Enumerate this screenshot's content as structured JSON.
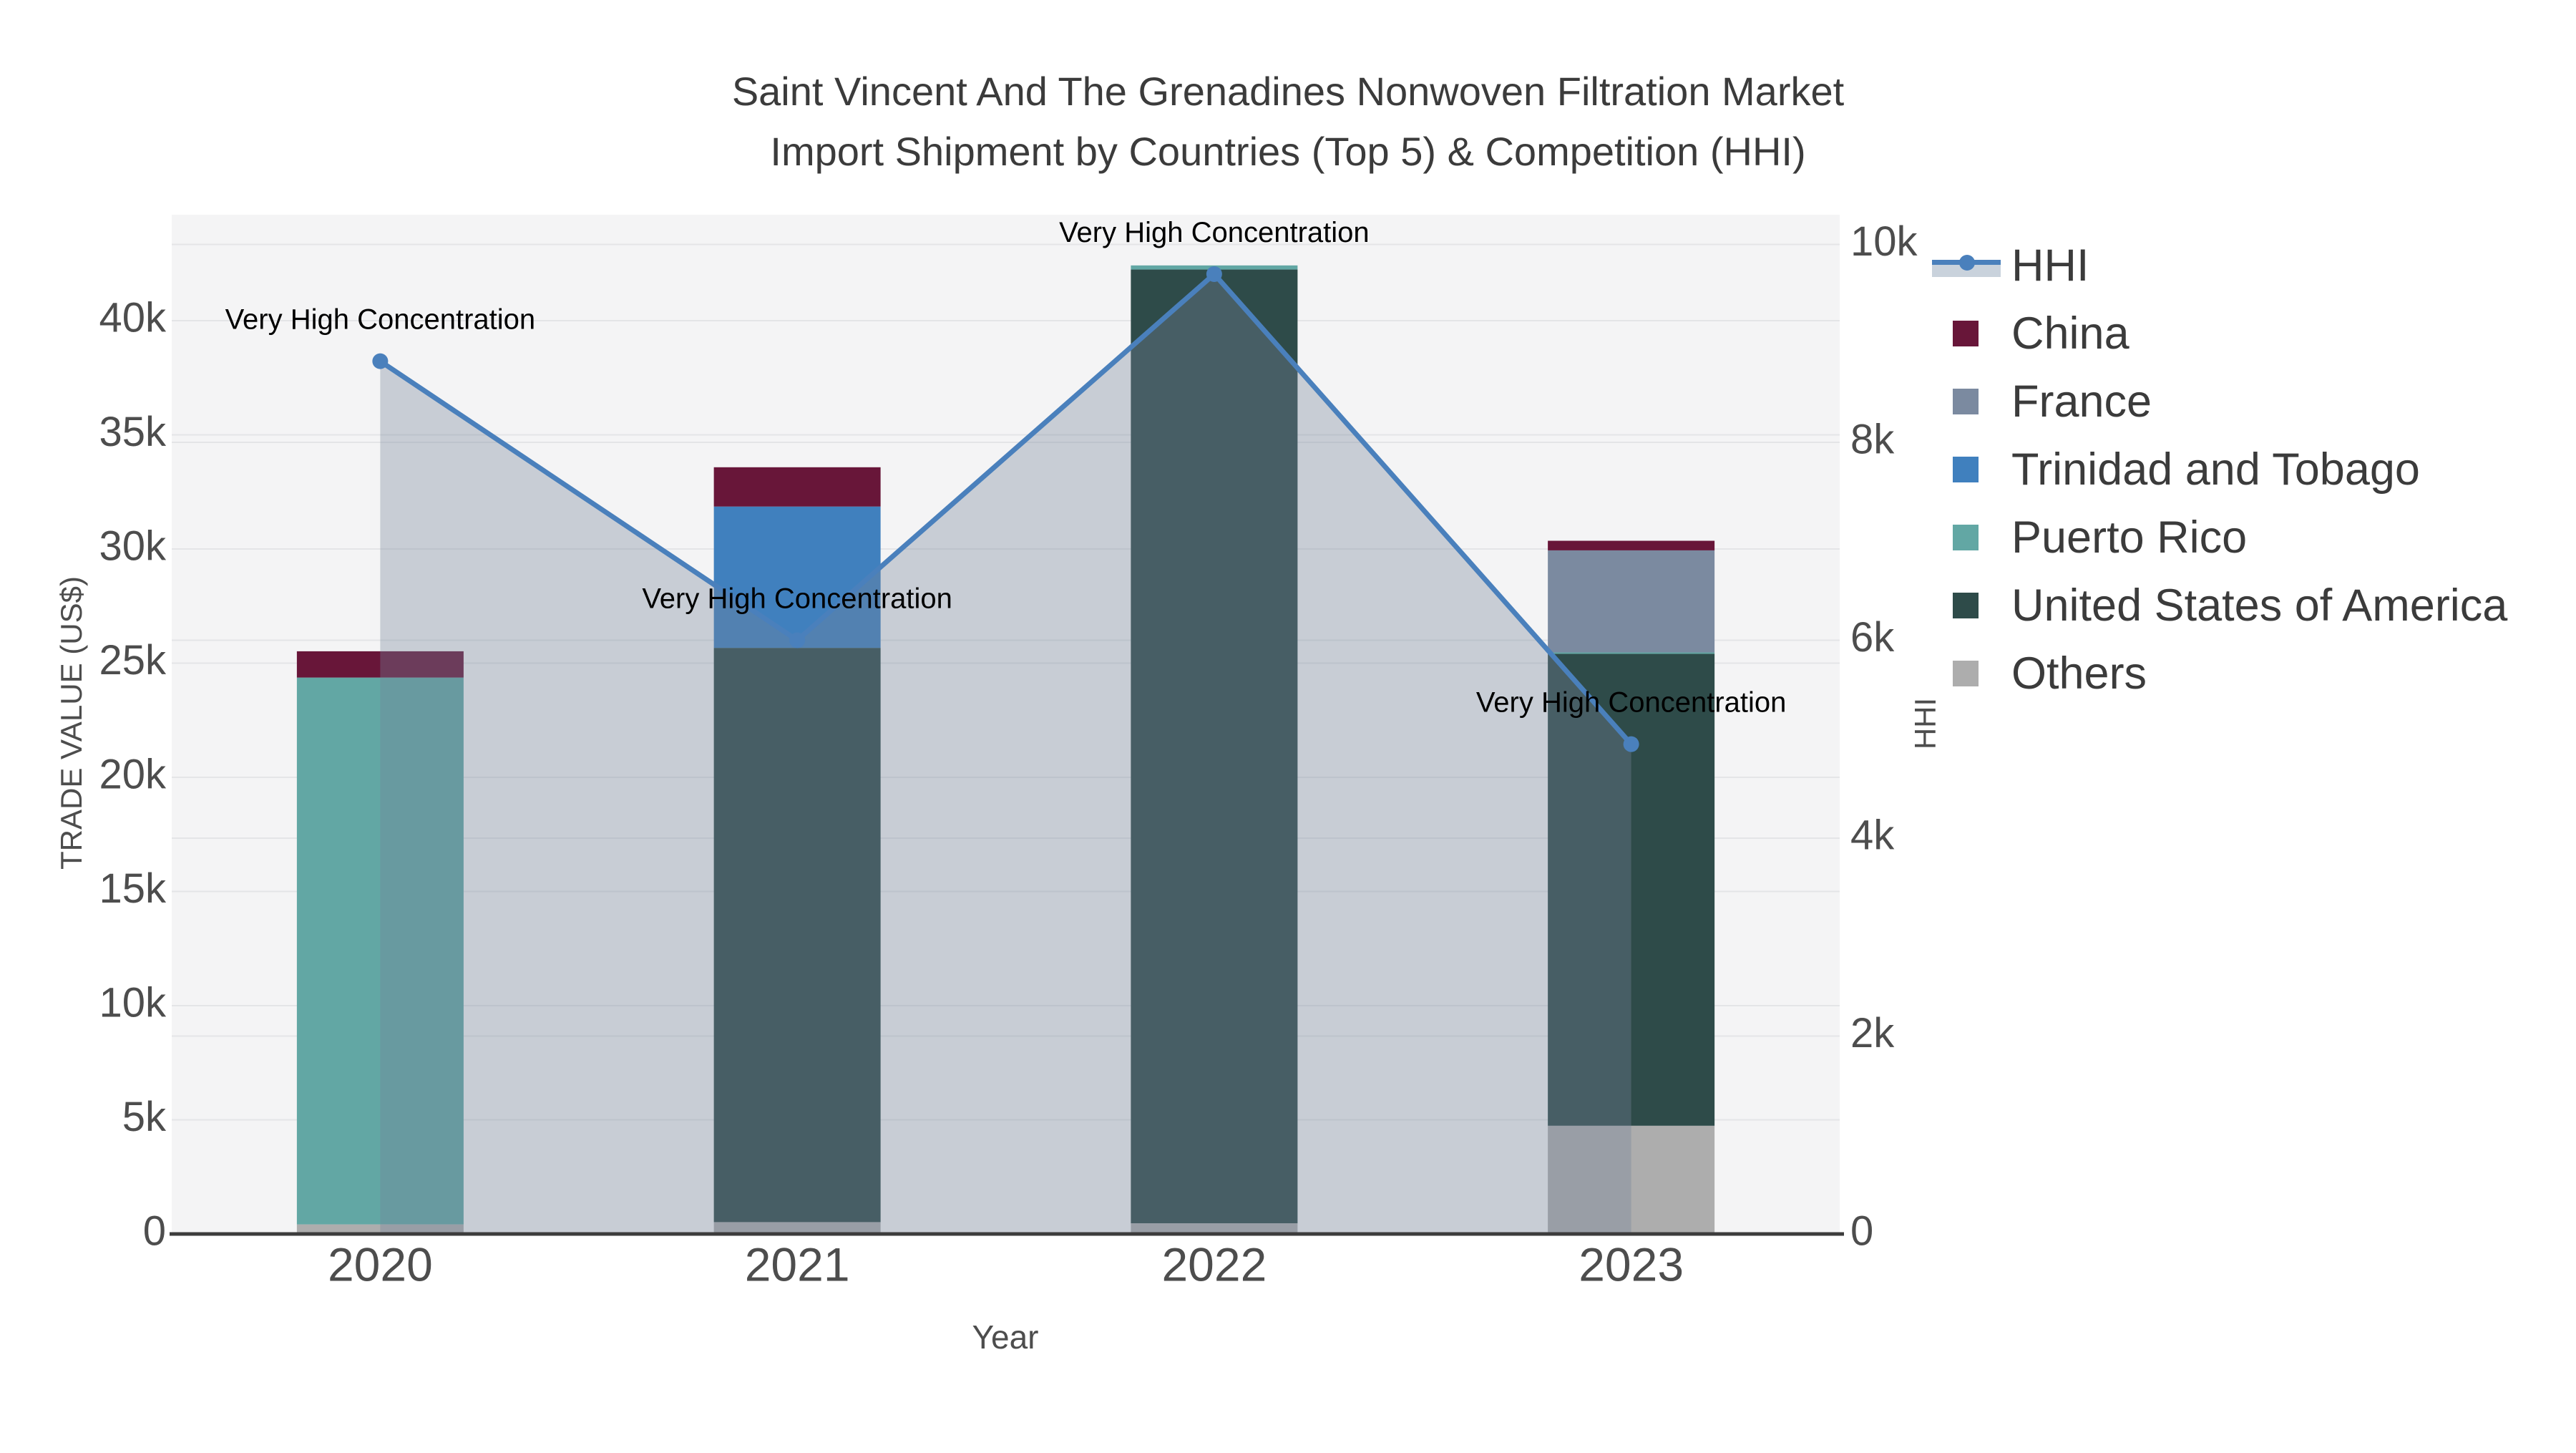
{
  "title": {
    "line1": "Saint Vincent And The Grenadines Nonwoven Filtration Market",
    "line2": "Import Shipment by Countries (Top 5) & Competition (HHI)"
  },
  "axes": {
    "x": {
      "title": "Year",
      "ticks": [
        "2020",
        "2021",
        "2022",
        "2023"
      ]
    },
    "left": {
      "title": "TRADE VALUE (US$)",
      "tick_labels": [
        "0",
        "5k",
        "10k",
        "15k",
        "20k",
        "25k",
        "30k",
        "35k",
        "40k"
      ],
      "tick_values": [
        0,
        5000,
        10000,
        15000,
        20000,
        25000,
        30000,
        35000,
        40000
      ],
      "max": 44640
    },
    "right": {
      "title": "HHI",
      "tick_labels": [
        "0",
        "2k",
        "4k",
        "6k",
        "8k",
        "10k"
      ],
      "tick_values": [
        0,
        2000,
        4000,
        6000,
        8000,
        10000
      ],
      "max": 10300
    }
  },
  "legend": {
    "items": [
      {
        "label": "HHI",
        "color": "#4a80bc",
        "type": "line"
      },
      {
        "label": "China",
        "color": "#681639",
        "type": "box"
      },
      {
        "label": "France",
        "color": "#7b8aa0",
        "type": "box"
      },
      {
        "label": "Trinidad and Tobago",
        "color": "#4080be",
        "type": "box"
      },
      {
        "label": "Puerto Rico",
        "color": "#62a7a4",
        "type": "box"
      },
      {
        "label": "United States of America",
        "color": "#2e4b49",
        "type": "box"
      },
      {
        "label": "Others",
        "color": "#adadad",
        "type": "box"
      }
    ]
  },
  "annotations": {
    "text": "Very High Concentration",
    "point_indexes": [
      0,
      1,
      2,
      3
    ]
  },
  "colors": {
    "plot_bg": "#f4f4f5",
    "gridline": "#e4e5e7",
    "axis_line": "#3c3c3c",
    "tick_text": "#4d4d4d",
    "annotation_text": "#000000",
    "hhi_line": "#4a80bc",
    "hhi_area": "rgba(118,133,156,0.35)"
  },
  "chart_data": {
    "type": "bar",
    "subtype": "stacked-bars-with-line-overlay",
    "title": "Saint Vincent And The Grenadines Nonwoven Filtration Market Import Shipment by Countries (Top 5) & Competition (HHI)",
    "categories": [
      "2020",
      "2021",
      "2022",
      "2023"
    ],
    "series": [
      {
        "name": "China",
        "color": "#681639",
        "values": [
          1150,
          1720,
          0,
          420
        ]
      },
      {
        "name": "France",
        "color": "#7b8aa0",
        "values": [
          0,
          0,
          0,
          4470
        ]
      },
      {
        "name": "Trinidad and Tobago",
        "color": "#4080be",
        "values": [
          0,
          6190,
          0,
          0
        ]
      },
      {
        "name": "Puerto Rico",
        "color": "#62a7a4",
        "values": [
          23950,
          0,
          180,
          60
        ]
      },
      {
        "name": "United States of America",
        "color": "#2e4b49",
        "values": [
          0,
          25150,
          41770,
          20670
        ]
      },
      {
        "name": "Others",
        "color": "#adadad",
        "values": [
          420,
          520,
          470,
          4740
        ]
      }
    ],
    "stack_order": [
      "Others",
      "United States of America",
      "Puerto Rico",
      "Trinidad and Tobago",
      "France",
      "China"
    ],
    "bar_totals": [
      25520,
      33580,
      42420,
      30360
    ],
    "line_series": {
      "name": "HHI",
      "axis": "right",
      "values": [
        8820,
        6000,
        9700,
        4950
      ]
    },
    "xlabel": "Year",
    "ylabel": "TRADE VALUE (US$)",
    "ylabel_right": "HHI",
    "ylim_left": [
      0,
      44640
    ],
    "ylim_right": [
      0,
      10300
    ],
    "grid": true,
    "legend_position": "right"
  }
}
